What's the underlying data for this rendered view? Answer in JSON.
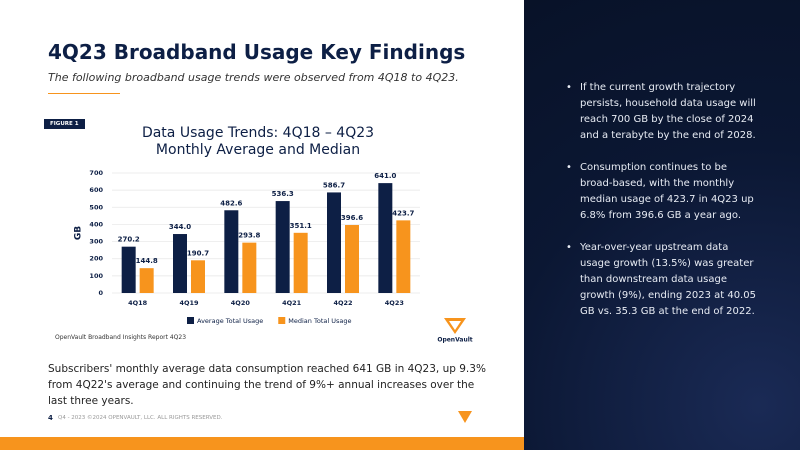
{
  "slide": {
    "title": "4Q23 Broadband Usage Key Findings",
    "subtitle": "The following broadband usage trends were observed from 4Q18 to 4Q23.",
    "figure_tag": "FIGURE 1",
    "source": "OpenVault Broadband Insights Report 4Q23",
    "logo": "OpenVault",
    "summary": "Subscribers' monthly average data consumption reached 641 GB in 4Q23, up 9.3% from 4Q22's average and continuing the trend of 9%+ annual increases over the last three years.",
    "page_number": "4",
    "footer": "Q4 - 2023 ©2024 OPENVAULT, LLC. ALL RIGHTS RESERVED.",
    "bullets": [
      "If the current growth trajectory persists, household data usage will reach 700 GB by the close of 2024 and a terabyte by the end of 2028.",
      "Consumption continues to be broad-based, with the monthly median usage of 423.7 in 4Q23 up 6.8% from 396.6 GB a year ago.",
      "Year-over-year upstream data usage growth (13.5%) was greater than downstream data usage growth (9%), ending 2023 at 40.05 GB vs. 35.3 GB at the end of 2022."
    ]
  },
  "chart_data": {
    "type": "bar",
    "title": "Data Usage Trends: 4Q18 – 4Q23",
    "subtitle": "Monthly Average and Median",
    "y_label": "GB",
    "categories": [
      "4Q18",
      "4Q19",
      "4Q20",
      "4Q21",
      "4Q22",
      "4Q23"
    ],
    "series": [
      {
        "name": "Average Total Usage",
        "color": "#0d1f45",
        "values": [
          270.2,
          344.0,
          482.6,
          536.3,
          586.7,
          641.0
        ],
        "value_labels": [
          "270.2",
          "344.0",
          "482.6",
          "536.3",
          "586.7",
          "641.0"
        ]
      },
      {
        "name": "Median Total Usage",
        "color": "#f7941d",
        "values": [
          144.8,
          190.7,
          293.8,
          351.1,
          396.6,
          423.7
        ],
        "value_labels": [
          "144.8",
          "190.7",
          "293.8",
          "351.1",
          "396.6",
          "423.7"
        ]
      }
    ],
    "ylim": [
      0,
      700
    ],
    "yticks": [
      0,
      100,
      200,
      300,
      400,
      500,
      600,
      700
    ],
    "grid": true,
    "legend": "bottom"
  }
}
